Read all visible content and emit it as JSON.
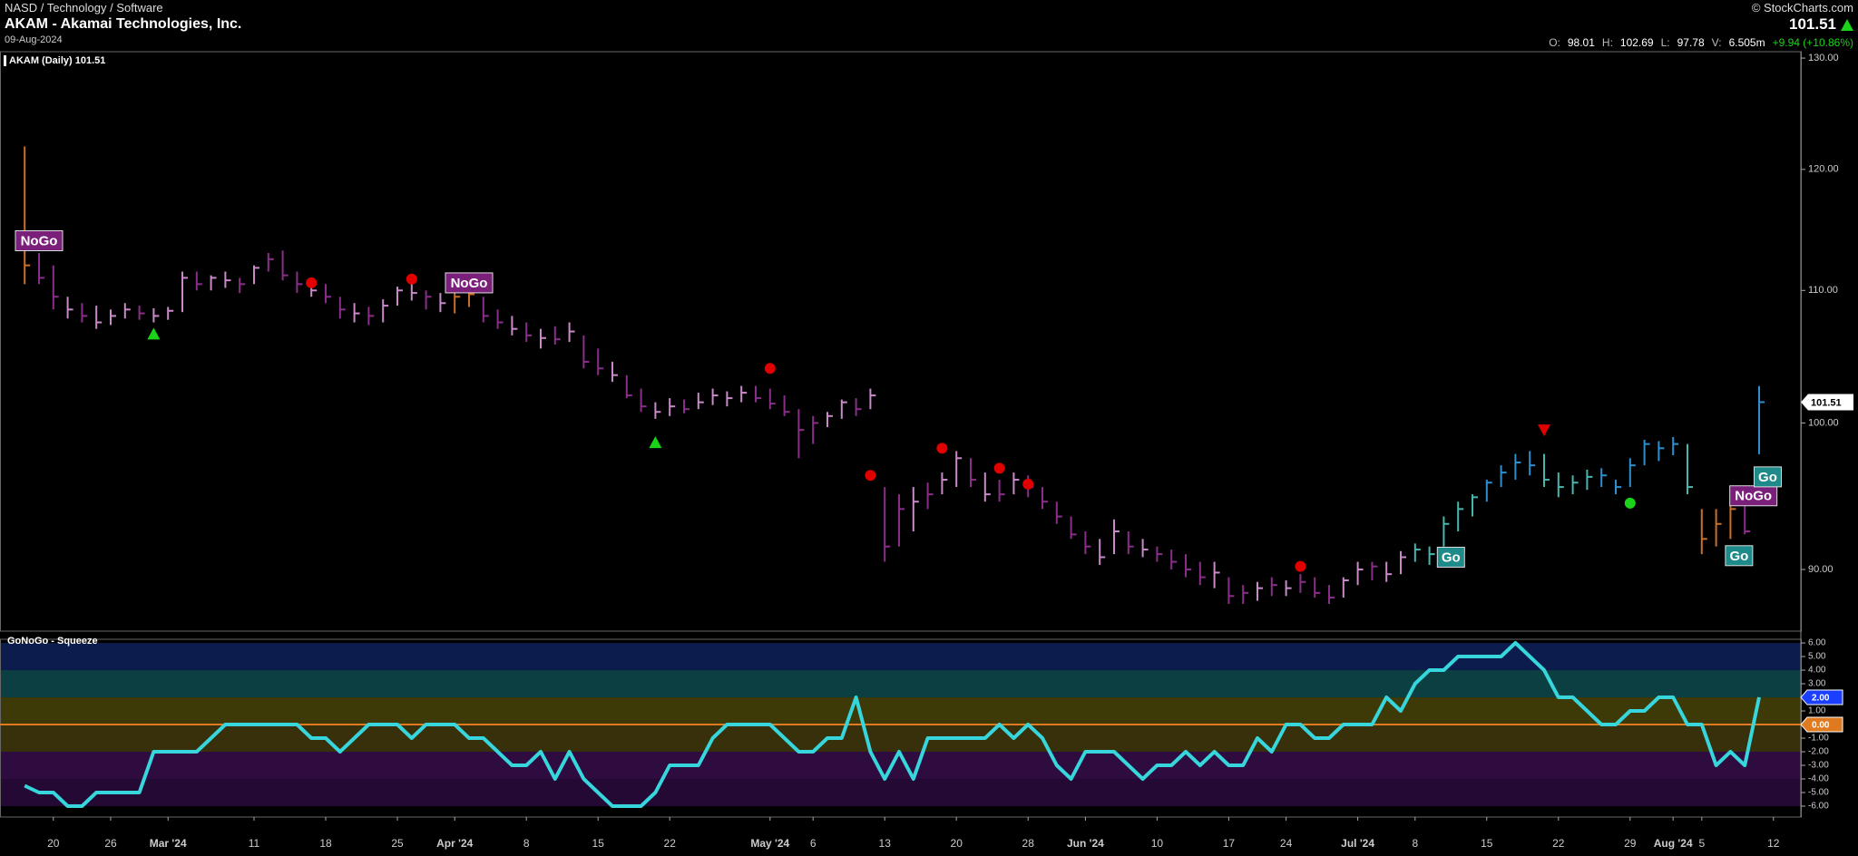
{
  "header": {
    "path": "NASD / Technology / Software",
    "title": "AKAM - Akamai Technologies, Inc.",
    "date": "09-Aug-2024",
    "copyright": "© StockCharts.com",
    "last": "101.51",
    "quote": [
      {
        "label": "O:",
        "value": "98.01"
      },
      {
        "label": "H:",
        "value": "102.69"
      },
      {
        "label": "L:",
        "value": "97.78"
      },
      {
        "label": "V:",
        "value": "6.505m"
      }
    ],
    "change": "+9.94 (+10.86%)"
  },
  "chart_data": {
    "type": "ohlc",
    "legend": "AKAM (Daily) 101.51",
    "log_scale": true,
    "categories": [
      null,
      null,
      "20",
      null,
      null,
      null,
      "26",
      null,
      null,
      null,
      "Mar '24",
      null,
      null,
      null,
      null,
      null,
      "11",
      null,
      null,
      null,
      null,
      "18",
      null,
      null,
      null,
      null,
      "25",
      null,
      null,
      null,
      "Apr '24",
      null,
      null,
      null,
      null,
      "8",
      null,
      null,
      null,
      null,
      "15",
      null,
      null,
      null,
      null,
      "22",
      null,
      null,
      null,
      null,
      null,
      null,
      "May '24",
      null,
      null,
      "6",
      null,
      null,
      null,
      null,
      "13",
      null,
      null,
      null,
      null,
      "20",
      null,
      null,
      null,
      null,
      "28",
      null,
      null,
      null,
      "Jun '24",
      null,
      null,
      null,
      null,
      "10",
      null,
      null,
      null,
      null,
      "17",
      null,
      null,
      null,
      "24",
      null,
      null,
      null,
      null,
      "Jul '24",
      null,
      null,
      null,
      "8",
      null,
      null,
      null,
      null,
      "15",
      null,
      null,
      null,
      null,
      "22",
      null,
      null,
      null,
      null,
      "29",
      null,
      null,
      "Aug '24",
      null,
      "5",
      null,
      null,
      null,
      null,
      "12"
    ],
    "high": [
      122,
      113,
      112,
      109.5,
      109,
      108.8,
      108.5,
      109,
      108.8,
      108.6,
      108.7,
      111.5,
      111.5,
      111.2,
      111.5,
      111,
      112,
      113,
      113.2,
      111.5,
      110.8,
      110.5,
      109.5,
      109,
      108.7,
      109.3,
      110.3,
      110.6,
      110,
      109.8,
      110.2,
      110.3,
      109.5,
      108.5,
      108,
      107.5,
      107,
      107.2,
      107.5,
      106.5,
      105.5,
      104.5,
      103.5,
      102.5,
      101.5,
      101.8,
      101.7,
      102.2,
      102.5,
      102.3,
      102.7,
      102.7,
      102.5,
      102,
      101,
      100.5,
      100.8,
      101.7,
      101.8,
      102.5,
      95.5,
      95,
      95.5,
      95.8,
      96.5,
      98,
      97.5,
      96.5,
      96,
      96.5,
      96.3,
      95.5,
      94.5,
      93.5,
      92.5,
      92,
      93.3,
      92.5,
      92,
      91.5,
      91.3,
      91,
      90.5,
      90.5,
      89.5,
      89,
      89.2,
      89.5,
      89.3,
      89.7,
      89.5,
      89,
      89.5,
      90.5,
      90.5,
      90.5,
      91.2,
      91.7,
      91.5,
      93.5,
      94.5,
      95,
      96,
      97,
      97.8,
      98,
      97.8,
      96.5,
      96.3,
      96.7,
      96.8,
      96,
      97.5,
      98.8,
      98.7,
      99,
      98.5,
      94,
      94,
      95,
      94.5,
      102.69,
      null
    ],
    "low": [
      110.5,
      110.5,
      108.5,
      107.8,
      107.5,
      107,
      107.3,
      107.8,
      107.7,
      107.5,
      107.7,
      108.3,
      110,
      110,
      110.2,
      109.8,
      110.5,
      111.5,
      110.8,
      109.8,
      109.5,
      109,
      107.8,
      107.5,
      107.3,
      107.5,
      108.8,
      109.2,
      108.5,
      108.3,
      108.2,
      108.7,
      107.5,
      107,
      106.5,
      106,
      105.5,
      105.8,
      106,
      104,
      103.5,
      103,
      101.8,
      100.8,
      100.3,
      100.5,
      100.7,
      101,
      101.3,
      101.2,
      101.5,
      101.5,
      101,
      100.5,
      97.5,
      98.5,
      99.7,
      100.3,
      100.5,
      101,
      90.5,
      91.5,
      92.5,
      94,
      95,
      95.5,
      95.5,
      94.5,
      94.5,
      95,
      94.8,
      94,
      93,
      92,
      91,
      90.3,
      91,
      91,
      90.8,
      90.5,
      90,
      89.5,
      89,
      88.8,
      87.8,
      87.8,
      88,
      88.3,
      88.3,
      88.5,
      88.2,
      87.8,
      88.2,
      89,
      89.3,
      89.2,
      89.7,
      90.5,
      90.3,
      91.5,
      92.5,
      93.5,
      94.5,
      95.5,
      96,
      96.3,
      95.5,
      94.8,
      95,
      95.3,
      95.5,
      95,
      95.5,
      97,
      97.3,
      97.7,
      95,
      91,
      91.5,
      92,
      92.3,
      97.78,
      null
    ],
    "close": [
      112,
      111,
      109.5,
      108.5,
      108,
      107.5,
      108,
      108.5,
      108.2,
      108,
      108.4,
      111,
      110.5,
      111,
      110.8,
      110.5,
      111.8,
      112.5,
      111.2,
      110.5,
      110,
      109.5,
      108.5,
      108.2,
      108,
      108.8,
      110,
      109.8,
      109.5,
      109,
      109.5,
      109.7,
      108,
      107.5,
      107,
      106.5,
      106.3,
      106.2,
      106.8,
      104.5,
      104,
      103.5,
      102,
      101.2,
      100.8,
      101.2,
      101,
      101.5,
      102,
      101.8,
      102.2,
      101.8,
      101.4,
      100.8,
      99.5,
      100,
      100.5,
      101.5,
      101,
      102,
      91.5,
      94,
      94.5,
      95,
      96,
      97.5,
      96,
      95,
      95,
      96,
      95.5,
      94.5,
      93.5,
      92.3,
      91.5,
      90.8,
      92.5,
      91.5,
      91.3,
      91,
      90.5,
      90,
      89.5,
      89.8,
      88.3,
      88.5,
      88.8,
      89,
      88.8,
      89.2,
      88.5,
      88.2,
      89.3,
      90,
      90.2,
      89.7,
      90.8,
      91.3,
      91,
      93,
      94,
      94.8,
      95.8,
      96.5,
      97.2,
      97,
      96,
      95.5,
      95.8,
      96.2,
      96.3,
      95.5,
      97,
      98.5,
      98.2,
      98.5,
      95.5,
      92,
      93,
      94,
      92.5,
      101.51,
      null
    ],
    "bar_colors": [
      "#c8702a",
      "#8a2e8a",
      "#8a2e8a",
      "#c98ac9",
      "#8a2e8a",
      "#c98ac9",
      "#c98ac9",
      "#c98ac9",
      "#8a2e8a",
      "#c98ac9",
      "#c98ac9",
      "#c98ac9",
      "#8a2e8a",
      "#c98ac9",
      "#c98ac9",
      "#8a2e8a",
      "#c98ac9",
      "#8a2e8a",
      "#8a2e8a",
      "#8a2e8a",
      "#c98ac9",
      "#8a2e8a",
      "#8a2e8a",
      "#c98ac9",
      "#8a2e8a",
      "#c98ac9",
      "#c98ac9",
      "#c98ac9",
      "#8a2e8a",
      "#c98ac9",
      "#c8702a",
      "#c8702a",
      "#8a2e8a",
      "#8a2e8a",
      "#c98ac9",
      "#8a2e8a",
      "#c98ac9",
      "#8a2e8a",
      "#c98ac9",
      "#8a2e8a",
      "#8a2e8a",
      "#c98ac9",
      "#8a2e8a",
      "#8a2e8a",
      "#c98ac9",
      "#c98ac9",
      "#8a2e8a",
      "#c98ac9",
      "#c98ac9",
      "#c98ac9",
      "#c98ac9",
      "#8a2e8a",
      "#8a2e8a",
      "#8a2e8a",
      "#8a2e8a",
      "#8a2e8a",
      "#c98ac9",
      "#c98ac9",
      "#8a2e8a",
      "#c98ac9",
      "#8a2e8a",
      "#8a2e8a",
      "#c98ac9",
      "#8a2e8a",
      "#c98ac9",
      "#c98ac9",
      "#8a2e8a",
      "#c98ac9",
      "#8a2e8a",
      "#c98ac9",
      "#8a2e8a",
      "#8a2e8a",
      "#8a2e8a",
      "#8a2e8a",
      "#8a2e8a",
      "#c98ac9",
      "#c98ac9",
      "#8a2e8a",
      "#c98ac9",
      "#8a2e8a",
      "#8a2e8a",
      "#8a2e8a",
      "#8a2e8a",
      "#c98ac9",
      "#8a2e8a",
      "#8a2e8a",
      "#c98ac9",
      "#8a2e8a",
      "#c98ac9",
      "#8a2e8a",
      "#8a2e8a",
      "#8a2e8a",
      "#c98ac9",
      "#c98ac9",
      "#8a2e8a",
      "#c98ac9",
      "#c98ac9",
      "#45b8ae",
      "#45b8ae",
      "#45b8ae",
      "#45b8ae",
      "#45b8ae",
      "#2e8fd0",
      "#2e8fd0",
      "#2e8fd0",
      "#2e8fd0",
      "#45b8ae",
      "#45b8ae",
      "#45b8ae",
      "#45b8ae",
      "#2e8fd0",
      "#2e8fd0",
      "#2e8fd0",
      "#2e8fd0",
      "#2e8fd0",
      "#2e8fd0",
      "#45b8ae",
      "#c8702a",
      "#c8702a",
      "#c8702a",
      "#8a2e8a",
      "#2e8fd0",
      null
    ],
    "ylim": [
      86.1,
      130.6
    ],
    "yticks": [
      {
        "value": 90,
        "label": "90.00"
      },
      {
        "value": 100,
        "label": "100.00"
      },
      {
        "value": 110,
        "label": "110.00"
      },
      {
        "value": 120,
        "label": "120.00"
      },
      {
        "value": 130,
        "label": "130.00"
      }
    ],
    "last_price": {
      "value": 101.51,
      "label": "101.51"
    },
    "markers": [
      {
        "index": 20,
        "price": 110.6,
        "shape": "dot",
        "color": "#e00000"
      },
      {
        "index": 27,
        "price": 110.9,
        "shape": "dot",
        "color": "#e00000"
      },
      {
        "index": 31,
        "price": 110.6,
        "shape": "dot",
        "color": "#e00000"
      },
      {
        "index": 52,
        "price": 104.0,
        "shape": "dot",
        "color": "#e00000"
      },
      {
        "index": 59,
        "price": 96.3,
        "shape": "dot",
        "color": "#e00000"
      },
      {
        "index": 64,
        "price": 98.2,
        "shape": "dot",
        "color": "#e00000"
      },
      {
        "index": 68,
        "price": 96.8,
        "shape": "dot",
        "color": "#e00000"
      },
      {
        "index": 70,
        "price": 95.7,
        "shape": "dot",
        "color": "#e00000"
      },
      {
        "index": 89,
        "price": 90.2,
        "shape": "dot",
        "color": "#e00000"
      },
      {
        "index": 9,
        "price": 106.6,
        "shape": "up",
        "color": "#19d419"
      },
      {
        "index": 44,
        "price": 98.6,
        "shape": "up",
        "color": "#19d419"
      },
      {
        "index": 106,
        "price": 99.5,
        "shape": "down",
        "color": "#e00000"
      },
      {
        "index": 112,
        "price": 94.4,
        "shape": "dot",
        "color": "#19d419"
      }
    ],
    "labels": [
      {
        "index": 1,
        "price": 114.0,
        "text": "NoGo",
        "color": "#7a1f7a"
      },
      {
        "index": 31,
        "price": 110.6,
        "text": "NoGo",
        "color": "#7a1f7a"
      },
      {
        "index": 99.5,
        "price": 90.8,
        "text": "Go",
        "color": "#1f8a8a"
      },
      {
        "index": 120.6,
        "price": 94.9,
        "text": "NoGo",
        "color": "#7a1f7a"
      },
      {
        "index": 119.6,
        "price": 90.9,
        "text": "Go",
        "color": "#1f8a8a"
      },
      {
        "index": 121.6,
        "price": 96.2,
        "text": "Go",
        "color": "#1f8a8a"
      }
    ],
    "oscillator": {
      "title": "GoNoGo - Squeeze",
      "color": "#36d6dc",
      "values": [
        -4.5,
        -5,
        -5,
        -6,
        -6,
        -5,
        -5,
        -5,
        -5,
        -2,
        -2,
        -2,
        -2,
        -1,
        0,
        0,
        0,
        0,
        0,
        0,
        -1,
        -1,
        -2,
        -1,
        0,
        0,
        0,
        -1,
        0,
        0,
        0,
        -1,
        -1,
        -2,
        -3,
        -3,
        -2,
        -4,
        -2,
        -4,
        -5,
        -6,
        -6,
        -6,
        -5,
        -3,
        -3,
        -3,
        -1,
        0,
        0,
        0,
        0,
        -1,
        -2,
        -2,
        -1,
        -1,
        2,
        -2,
        -4,
        -2,
        -4,
        -1,
        -1,
        -1,
        -1,
        -1,
        0,
        -1,
        0,
        -1,
        -3,
        -4,
        -2,
        -2,
        -2,
        -3,
        -4,
        -3,
        -3,
        -2,
        -3,
        -2,
        -3,
        -3,
        -1,
        -2,
        0,
        0,
        -1,
        -1,
        0,
        0,
        0,
        2,
        1,
        3,
        4,
        4,
        5,
        5,
        5,
        5,
        6,
        5,
        4,
        2,
        2,
        1,
        0,
        0,
        1,
        1,
        2,
        2,
        0,
        0,
        -3,
        -2,
        -3,
        2,
        null
      ],
      "ylim": [
        -6.8,
        6.27
      ],
      "yticks": [
        {
          "value": 6,
          "label": "6.00"
        },
        {
          "value": 5,
          "label": "5.00"
        },
        {
          "value": 4,
          "label": "4.00"
        },
        {
          "value": 3,
          "label": "3.00"
        },
        {
          "value": 2,
          "label": "2.00"
        },
        {
          "value": 1,
          "label": "1.00"
        },
        {
          "value": 0,
          "label": "0.00"
        },
        {
          "value": -1,
          "label": "-1.00"
        },
        {
          "value": -2,
          "label": "-2.00"
        },
        {
          "value": -3,
          "label": "-3.00"
        },
        {
          "value": -4,
          "label": "-4.00"
        },
        {
          "value": -5,
          "label": "-5.00"
        },
        {
          "value": -6,
          "label": "-6.00"
        }
      ],
      "bands": [
        {
          "from": 6,
          "to": 4,
          "color": "#0c1d4d"
        },
        {
          "from": 4,
          "to": 2,
          "color": "#0b3f42"
        },
        {
          "from": 2,
          "to": 0,
          "color": "#3d3a08"
        },
        {
          "from": 0,
          "to": -2,
          "color": "#37300a"
        },
        {
          "from": -2,
          "to": -4,
          "color": "#2e0c40"
        },
        {
          "from": -4,
          "to": -6,
          "color": "#240934"
        }
      ],
      "zero_line_color": "#e07a20",
      "highlight_ticks": [
        {
          "value": 2,
          "label": "2.00",
          "color": "#1a3fff"
        },
        {
          "value": 0,
          "label": "0.00",
          "color": "#e07a20"
        }
      ]
    }
  }
}
